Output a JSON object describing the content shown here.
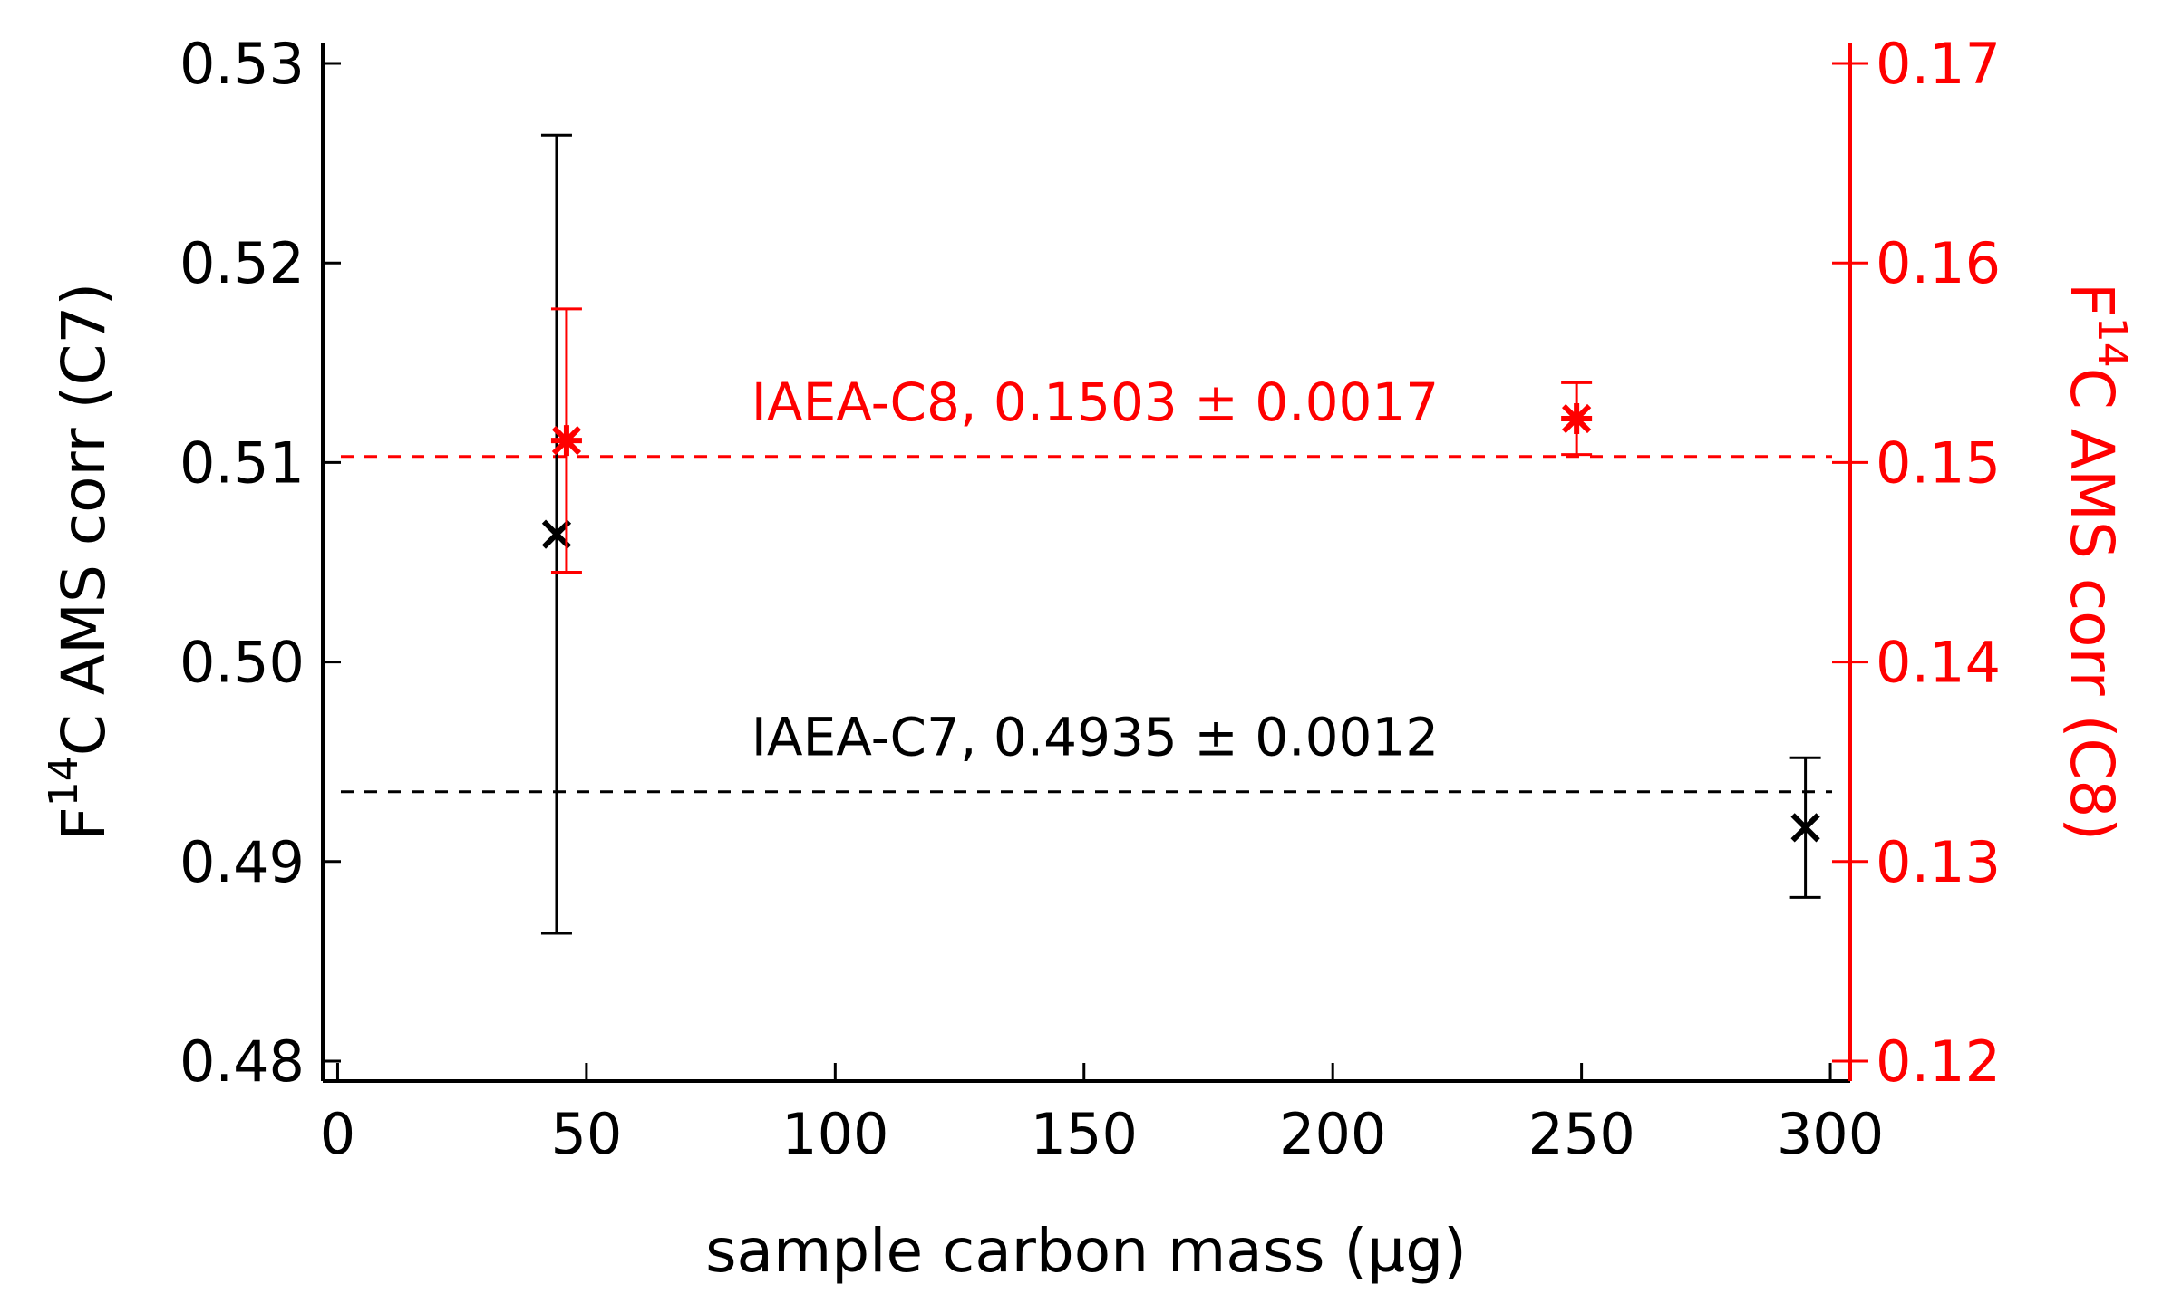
{
  "chart_data": {
    "type": "scatter",
    "xlabel": "sample carbon mass (µg)",
    "ylabel_left": {
      "base": "F",
      "sup": "14",
      "rest": "C AMS corr (C7)"
    },
    "ylabel_right": {
      "base": "F",
      "sup": "14",
      "rest": "C AMS corr (C8)"
    },
    "xlim": [
      -3,
      304
    ],
    "ylim_left": [
      0.479,
      0.531
    ],
    "ylim_right": [
      0.119,
      0.171
    ],
    "x_ticks": [
      0,
      50,
      100,
      150,
      200,
      250,
      300
    ],
    "y_ticks_left": [
      0.48,
      0.49,
      0.5,
      0.51,
      0.52,
      0.53
    ],
    "y_ticks_right": [
      0.12,
      0.13,
      0.14,
      0.15,
      0.16,
      0.17
    ],
    "x_tick_labels": [
      "0",
      "50",
      "100",
      "150",
      "200",
      "250",
      "300"
    ],
    "y_tick_labels_left": [
      "0.48",
      "0.49",
      "0.50",
      "0.51",
      "0.52",
      "0.53"
    ],
    "y_tick_labels_right": [
      "0.12",
      "0.13",
      "0.14",
      "0.15",
      "0.16",
      "0.17"
    ],
    "grid": false,
    "series": [
      {
        "axis": "left",
        "color": "#000000",
        "marker": "x",
        "points": [
          {
            "x": 44,
            "y": 0.5064,
            "err": 0.02
          },
          {
            "x": 295,
            "y": 0.4917,
            "err": 0.0035
          }
        ],
        "reference": {
          "y": 0.4935,
          "label": "IAEA-C7, 0.4935 ± 0.0012"
        }
      },
      {
        "axis": "right",
        "color": "#ff0000",
        "marker": "asterisk",
        "points": [
          {
            "x": 46,
            "y": 0.1511,
            "err": 0.0066
          },
          {
            "x": 249,
            "y": 0.1522,
            "err": 0.0018
          }
        ],
        "reference": {
          "y": 0.1503,
          "label": "IAEA-C8, 0.1503 ± 0.0017"
        }
      }
    ]
  }
}
